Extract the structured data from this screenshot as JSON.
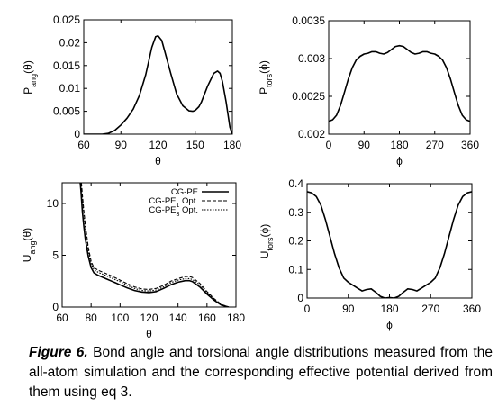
{
  "chart_data": [
    {
      "id": "p_ang",
      "type": "line",
      "xlabel": "θ",
      "ylabel_main": "P",
      "ylabel_sub": "ang",
      "ylabel_arg": "(θ)",
      "xlim": [
        60,
        180
      ],
      "ylim": [
        0,
        0.025
      ],
      "xticks": [
        60,
        90,
        120,
        150,
        180
      ],
      "xtick_labels": [
        "60",
        "90",
        "120",
        "150",
        "180"
      ],
      "yticks": [
        0,
        0.005,
        0.01,
        0.015,
        0.02,
        0.025
      ],
      "ytick_labels": [
        "0",
        "0.005",
        "0.01",
        "0.015",
        "0.02",
        "0.025"
      ],
      "series": [
        {
          "x": [
            60,
            70,
            75,
            80,
            85,
            90,
            95,
            100,
            105,
            110,
            115,
            118,
            120,
            123,
            125,
            130,
            135,
            140,
            145,
            148,
            150,
            153,
            155,
            160,
            165,
            168,
            170,
            172,
            175,
            178,
            180
          ],
          "y": [
            0,
            0,
            0,
            0.0002,
            0.0008,
            0.002,
            0.0035,
            0.0055,
            0.0085,
            0.013,
            0.019,
            0.0213,
            0.0215,
            0.0205,
            0.0185,
            0.0135,
            0.0088,
            0.0062,
            0.0051,
            0.005,
            0.0052,
            0.006,
            0.007,
            0.0105,
            0.0133,
            0.0138,
            0.0133,
            0.0115,
            0.007,
            0.0015,
            0
          ]
        }
      ]
    },
    {
      "id": "p_tors",
      "type": "line",
      "xlabel": "ϕ",
      "ylabel_main": "P",
      "ylabel_sub": "tors",
      "ylabel_arg": "(ϕ)",
      "xlim": [
        0,
        360
      ],
      "ylim": [
        0.002,
        0.0035
      ],
      "xticks": [
        0,
        90,
        180,
        270,
        360
      ],
      "xtick_labels": [
        "0",
        "90",
        "180",
        "270",
        "360"
      ],
      "yticks": [
        0.002,
        0.0025,
        0.003,
        0.0035
      ],
      "ytick_labels": [
        "0.002",
        "0.0025",
        "0.003",
        "0.0035"
      ],
      "series": [
        {
          "x": [
            0,
            10,
            20,
            30,
            40,
            50,
            60,
            70,
            80,
            90,
            100,
            110,
            120,
            130,
            140,
            150,
            160,
            170,
            180,
            190,
            200,
            210,
            220,
            230,
            240,
            250,
            260,
            270,
            280,
            290,
            300,
            310,
            320,
            330,
            340,
            350,
            360
          ],
          "y": [
            0.00217,
            0.00219,
            0.00225,
            0.00238,
            0.00255,
            0.00273,
            0.00288,
            0.00298,
            0.00303,
            0.00306,
            0.00307,
            0.00309,
            0.00309,
            0.00307,
            0.00306,
            0.00308,
            0.00312,
            0.00316,
            0.00317,
            0.00316,
            0.00312,
            0.00308,
            0.00306,
            0.00307,
            0.00309,
            0.00309,
            0.00307,
            0.00306,
            0.00303,
            0.00298,
            0.00288,
            0.00273,
            0.00255,
            0.00238,
            0.00225,
            0.00219,
            0.00217
          ]
        }
      ]
    },
    {
      "id": "u_ang",
      "type": "line",
      "xlabel": "θ",
      "ylabel_main": "U",
      "ylabel_sub": "ang",
      "ylabel_arg": "(θ)",
      "xlim": [
        60,
        180
      ],
      "ylim": [
        0,
        12
      ],
      "xticks": [
        60,
        80,
        100,
        120,
        140,
        160,
        180
      ],
      "xtick_labels": [
        "60",
        "80",
        "100",
        "120",
        "140",
        "160",
        "180"
      ],
      "yticks": [
        0,
        5,
        10
      ],
      "ytick_labels": [
        "0",
        "5",
        "10"
      ],
      "legend_position": "top-right",
      "series": [
        {
          "name": "CG-PE",
          "style": "solid",
          "x": [
            72.5,
            73,
            74,
            75,
            76,
            78,
            80,
            82,
            85,
            90,
            95,
            100,
            105,
            110,
            115,
            120,
            125,
            130,
            135,
            140,
            145,
            148,
            150,
            155,
            160,
            165,
            170,
            175
          ],
          "y": [
            12,
            11.2,
            9.2,
            7.8,
            6.6,
            4.9,
            3.8,
            3.3,
            3.05,
            2.75,
            2.45,
            2.15,
            1.85,
            1.6,
            1.45,
            1.4,
            1.5,
            1.8,
            2.15,
            2.4,
            2.55,
            2.55,
            2.45,
            1.95,
            1.25,
            0.65,
            0.18,
            0
          ]
        },
        {
          "name": "CG-PE",
          "sub": "1",
          "name_suffix": " Opt.",
          "style": "dashed",
          "x": [
            73.3,
            74,
            75,
            76,
            78,
            80,
            82,
            85,
            90,
            95,
            100,
            105,
            110,
            115,
            120,
            125,
            130,
            135,
            140,
            145,
            148,
            150,
            155,
            160,
            165,
            170,
            175
          ],
          "y": [
            12,
            10.8,
            9.3,
            8,
            5.8,
            4.4,
            3.8,
            3.55,
            3.25,
            2.95,
            2.6,
            2.25,
            1.95,
            1.75,
            1.7,
            1.8,
            2.1,
            2.5,
            2.75,
            2.95,
            2.95,
            2.85,
            2.3,
            1.5,
            0.8,
            0.25,
            0
          ]
        },
        {
          "name": "CG-PE",
          "sub": "3",
          "name_suffix": " Opt.",
          "style": "dotted",
          "x": [
            73,
            74,
            75,
            76,
            78,
            80,
            82,
            85,
            90,
            95,
            100,
            105,
            110,
            115,
            120,
            125,
            130,
            135,
            140,
            145,
            148,
            150,
            155,
            160,
            165,
            170,
            175
          ],
          "y": [
            12,
            10.5,
            9,
            7.7,
            5.5,
            4.2,
            3.6,
            3.35,
            3.05,
            2.75,
            2.45,
            2.1,
            1.8,
            1.6,
            1.55,
            1.65,
            1.95,
            2.35,
            2.6,
            2.75,
            2.75,
            2.65,
            2.15,
            1.4,
            0.7,
            0.2,
            0
          ]
        }
      ]
    },
    {
      "id": "u_tors",
      "type": "line",
      "xlabel": "ϕ",
      "ylabel_main": "U",
      "ylabel_sub": "tors",
      "ylabel_arg": "(ϕ)",
      "xlim": [
        0,
        360
      ],
      "ylim": [
        0,
        0.4
      ],
      "xticks": [
        0,
        90,
        180,
        270,
        360
      ],
      "xtick_labels": [
        "0",
        "90",
        "180",
        "270",
        "360"
      ],
      "yticks": [
        0,
        0.1,
        0.2,
        0.3,
        0.4
      ],
      "ytick_labels": [
        "0",
        "0.1",
        "0.2",
        "0.3",
        "0.4"
      ],
      "series": [
        {
          "x": [
            0,
            10,
            20,
            30,
            40,
            50,
            60,
            70,
            80,
            90,
            100,
            110,
            120,
            130,
            140,
            150,
            160,
            170,
            180,
            190,
            200,
            210,
            220,
            230,
            240,
            250,
            260,
            270,
            280,
            290,
            300,
            310,
            320,
            330,
            340,
            350,
            360
          ],
          "y": [
            0.372,
            0.368,
            0.355,
            0.325,
            0.275,
            0.215,
            0.155,
            0.105,
            0.07,
            0.055,
            0.045,
            0.035,
            0.025,
            0.03,
            0.032,
            0.02,
            0.006,
            0,
            0.002,
            0,
            0.006,
            0.02,
            0.032,
            0.03,
            0.025,
            0.035,
            0.045,
            0.055,
            0.07,
            0.105,
            0.155,
            0.215,
            0.275,
            0.325,
            0.355,
            0.368,
            0.372
          ]
        }
      ]
    }
  ],
  "caption": {
    "label": "Figure 6.",
    "text": " Bond angle and torsional angle distributions measured from the all-atom simulation and the corresponding effective potential derived from them using eq 3."
  }
}
